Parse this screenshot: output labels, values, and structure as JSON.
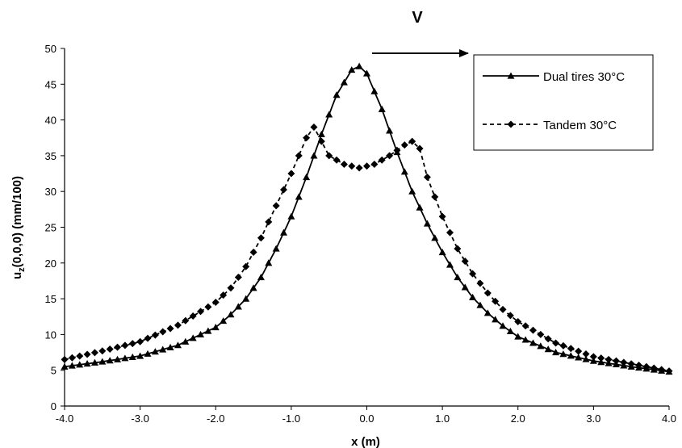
{
  "chart_data": {
    "type": "line",
    "annotation": "V",
    "xlabel": "x (m)",
    "ylabel": "u",
    "ylabel_sub": "z",
    "ylabel_rest": "(0,0,0) (mm/100)",
    "xlim": [
      -4.0,
      4.0
    ],
    "ylim": [
      0,
      50
    ],
    "x_ticks": [
      -4.0,
      -3.0,
      -2.0,
      -1.0,
      0.0,
      1.0,
      2.0,
      3.0,
      4.0
    ],
    "x_tick_labels": [
      "-4.0",
      "-3.0",
      "-2.0",
      "-1.0",
      "0.0",
      "1.0",
      "2.0",
      "3.0",
      "4.0"
    ],
    "y_ticks": [
      0,
      5,
      10,
      15,
      20,
      25,
      30,
      35,
      40,
      45,
      50
    ],
    "y_tick_labels": [
      "0",
      "5",
      "10",
      "15",
      "20",
      "25",
      "30",
      "35",
      "40",
      "45",
      "50"
    ],
    "grid": false,
    "legend_position": "top-right",
    "series": [
      {
        "name": "Dual tires  30°C",
        "line_style": "solid",
        "marker": "triangle",
        "color": "#000000",
        "x": [
          -4.0,
          -3.5,
          -3.0,
          -2.5,
          -2.0,
          -1.8,
          -1.6,
          -1.4,
          -1.2,
          -1.0,
          -0.8,
          -0.6,
          -0.4,
          -0.2,
          -0.1,
          0.0,
          0.2,
          0.4,
          0.6,
          0.8,
          1.0,
          1.2,
          1.4,
          1.6,
          1.8,
          2.0,
          2.5,
          3.0,
          3.5,
          4.0
        ],
        "y": [
          5.5,
          6.2,
          7.0,
          8.5,
          11.0,
          12.8,
          15.0,
          18.0,
          22.0,
          26.5,
          32.0,
          38.0,
          43.5,
          47.0,
          47.5,
          46.5,
          41.5,
          35.5,
          30.0,
          25.5,
          21.5,
          18.0,
          15.2,
          13.0,
          11.2,
          9.7,
          7.5,
          6.3,
          5.5,
          4.8
        ]
      },
      {
        "name": "Tandem  30°C",
        "line_style": "dashed",
        "marker": "diamond",
        "color": "#000000",
        "x": [
          -4.0,
          -3.5,
          -3.0,
          -2.5,
          -2.0,
          -1.8,
          -1.6,
          -1.4,
          -1.2,
          -1.0,
          -0.8,
          -0.7,
          -0.6,
          -0.5,
          -0.3,
          -0.1,
          0.1,
          0.3,
          0.5,
          0.6,
          0.7,
          0.8,
          1.0,
          1.2,
          1.4,
          1.6,
          1.8,
          2.0,
          2.5,
          3.0,
          3.5,
          4.0
        ],
        "y": [
          6.5,
          7.7,
          9.0,
          11.3,
          14.5,
          16.5,
          19.5,
          23.5,
          28.0,
          32.5,
          37.5,
          39.0,
          37.0,
          35.0,
          33.8,
          33.3,
          33.8,
          35.0,
          36.5,
          37.0,
          36.0,
          32.0,
          26.5,
          22.0,
          18.5,
          15.8,
          13.5,
          11.8,
          8.8,
          6.9,
          5.9,
          4.9
        ]
      }
    ]
  }
}
